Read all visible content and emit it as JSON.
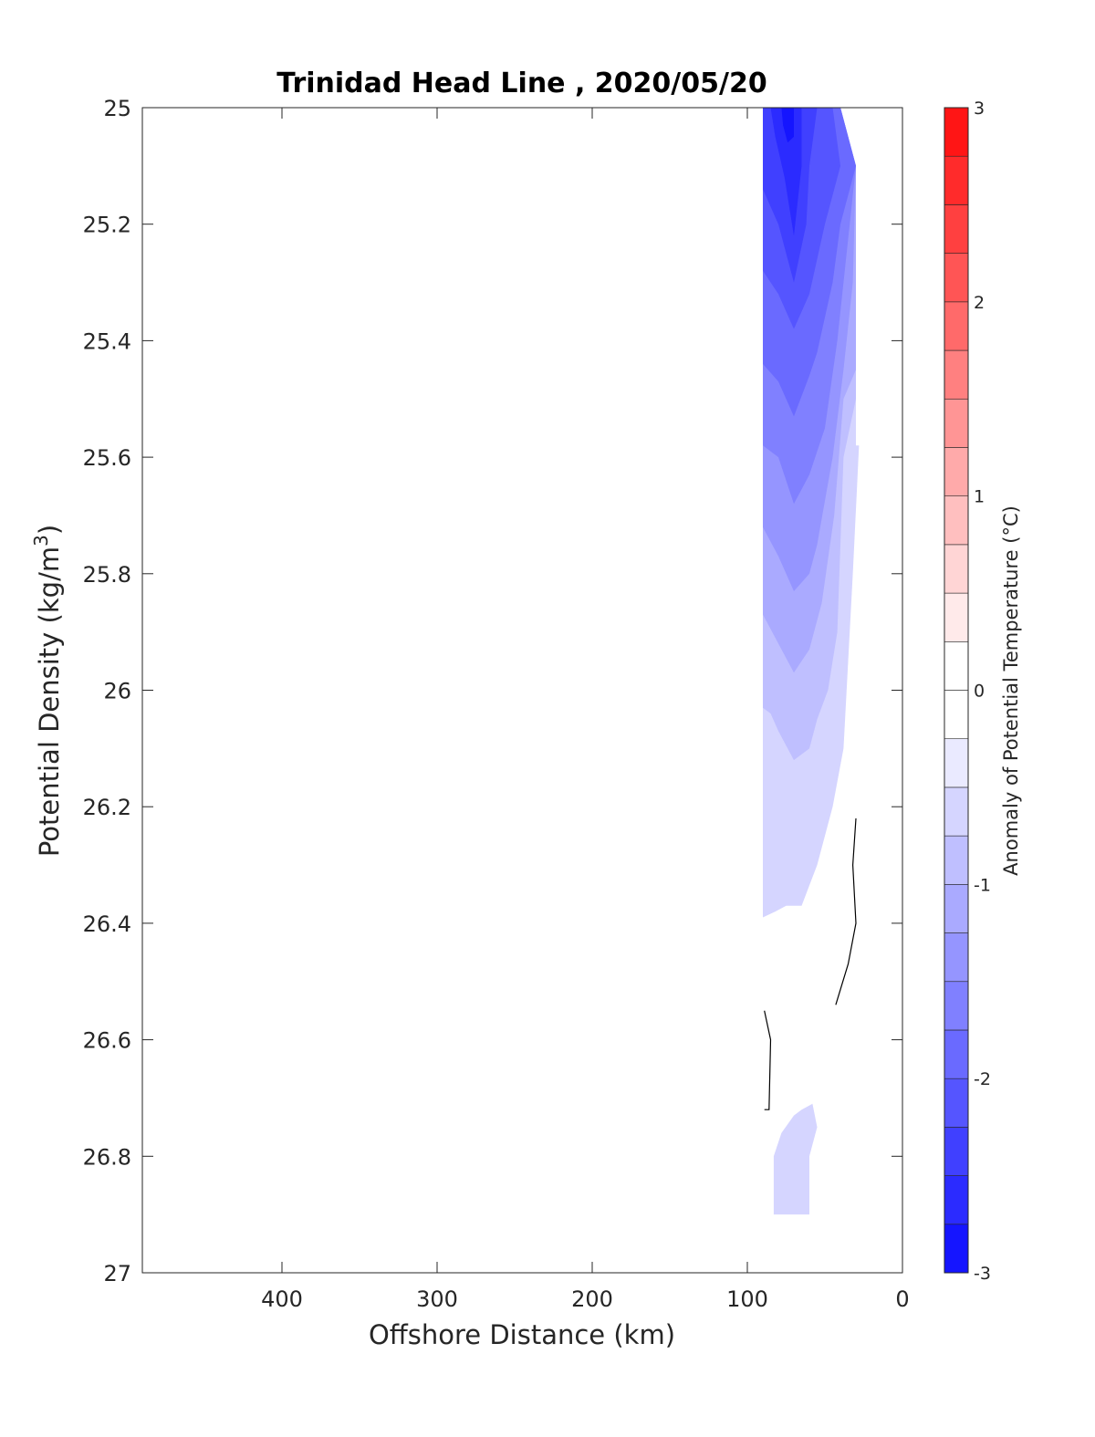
{
  "chart_data": {
    "type": "contour",
    "title": "Trinidad Head Line , 2020/05/20",
    "xlabel": "Offshore Distance (km)",
    "ylabel": "Potential Density (kg/m",
    "ylabel_sup": "3",
    "ylabel_close": ")",
    "xlim": [
      490,
      0
    ],
    "ylim": [
      25,
      27
    ],
    "x_reversed": true,
    "y_reversed": true,
    "x_ticks": [
      400,
      300,
      200,
      100,
      0
    ],
    "y_ticks": [
      "25",
      "25.2",
      "25.4",
      "25.6",
      "25.8",
      "26",
      "26.2",
      "26.4",
      "26.6",
      "26.8",
      "27"
    ],
    "colorbar": {
      "label": "Anomaly of Potential Temperature (°C)",
      "range": [
        -3,
        3
      ],
      "ticks": [
        "-3",
        "-2",
        "-1",
        "0",
        "1",
        "2",
        "3"
      ],
      "levels": 24,
      "step": 0.25,
      "negative_color": "#0000ff",
      "positive_color": "#ff0000",
      "neutral_color": "#ffffff"
    },
    "filled_regions": [
      {
        "level": -0.5,
        "points": [
          [
            90,
            25
          ],
          [
            40,
            25
          ],
          [
            30,
            25.1
          ],
          [
            30,
            25.58
          ],
          [
            28,
            25.58
          ],
          [
            32,
            25.8
          ],
          [
            38,
            26.1
          ],
          [
            45,
            26.2
          ],
          [
            55,
            26.3
          ],
          [
            65,
            26.37
          ],
          [
            75,
            26.37
          ],
          [
            82,
            26.38
          ],
          [
            90,
            26.39
          ]
        ]
      },
      {
        "level": -0.75,
        "points": [
          [
            90,
            25
          ],
          [
            40,
            25
          ],
          [
            30,
            25.1
          ],
          [
            30,
            25.5
          ],
          [
            38,
            25.6
          ],
          [
            42,
            25.9
          ],
          [
            48,
            26.0
          ],
          [
            55,
            26.05
          ],
          [
            60,
            26.1
          ],
          [
            70,
            26.12
          ],
          [
            80,
            26.07
          ],
          [
            85,
            26.04
          ],
          [
            90,
            26.03
          ]
        ]
      },
      {
        "level": -1.0,
        "points": [
          [
            90,
            25
          ],
          [
            40,
            25
          ],
          [
            30,
            25.1
          ],
          [
            30,
            25.45
          ],
          [
            38,
            25.5
          ],
          [
            44,
            25.7
          ],
          [
            52,
            25.85
          ],
          [
            60,
            25.93
          ],
          [
            70,
            25.97
          ],
          [
            80,
            25.92
          ],
          [
            90,
            25.87
          ]
        ]
      },
      {
        "level": -1.25,
        "points": [
          [
            90,
            25
          ],
          [
            40,
            25
          ],
          [
            30,
            25.1
          ],
          [
            32,
            25.3
          ],
          [
            38,
            25.45
          ],
          [
            45,
            25.6
          ],
          [
            55,
            25.75
          ],
          [
            60,
            25.8
          ],
          [
            70,
            25.83
          ],
          [
            80,
            25.77
          ],
          [
            90,
            25.72
          ]
        ]
      },
      {
        "level": -1.5,
        "points": [
          [
            90,
            25
          ],
          [
            40,
            25
          ],
          [
            30,
            25.1
          ],
          [
            36,
            25.25
          ],
          [
            42,
            25.4
          ],
          [
            50,
            25.55
          ],
          [
            60,
            25.63
          ],
          [
            70,
            25.68
          ],
          [
            80,
            25.6
          ],
          [
            90,
            25.58
          ]
        ]
      },
      {
        "level": -1.75,
        "points": [
          [
            90,
            25
          ],
          [
            40,
            25
          ],
          [
            30,
            25.1
          ],
          [
            40,
            25.2
          ],
          [
            45,
            25.3
          ],
          [
            55,
            25.42
          ],
          [
            60,
            25.46
          ],
          [
            70,
            25.53
          ],
          [
            80,
            25.47
          ],
          [
            90,
            25.44
          ]
        ]
      },
      {
        "level": -2.0,
        "points": [
          [
            90,
            25
          ],
          [
            45,
            25
          ],
          [
            40,
            25.1
          ],
          [
            50,
            25.2
          ],
          [
            60,
            25.32
          ],
          [
            70,
            25.38
          ],
          [
            80,
            25.32
          ],
          [
            90,
            25.28
          ]
        ]
      },
      {
        "level": -2.25,
        "points": [
          [
            90,
            25
          ],
          [
            55,
            25
          ],
          [
            60,
            25.1
          ],
          [
            62,
            25.2
          ],
          [
            70,
            25.3
          ],
          [
            80,
            25.2
          ],
          [
            90,
            25.14
          ]
        ]
      },
      {
        "level": -2.5,
        "points": [
          [
            85,
            25
          ],
          [
            65,
            25
          ],
          [
            65,
            25.1
          ],
          [
            70,
            25.22
          ],
          [
            76,
            25.12
          ],
          [
            82,
            25.05
          ]
        ]
      },
      {
        "level": -2.75,
        "points": [
          [
            78,
            25
          ],
          [
            70,
            25
          ],
          [
            70,
            25.05
          ],
          [
            74,
            25.06
          ],
          [
            77,
            25.03
          ]
        ]
      },
      {
        "level": -0.5,
        "points": [
          [
            83,
            26.9
          ],
          [
            60,
            26.9
          ],
          [
            60,
            26.8
          ],
          [
            55,
            26.75
          ],
          [
            58,
            26.71
          ],
          [
            65,
            26.72
          ],
          [
            70,
            26.73
          ],
          [
            78,
            26.76
          ],
          [
            83,
            26.8
          ]
        ]
      }
    ],
    "contour_lines": [
      {
        "level": 0,
        "points": [
          [
            30,
            26.22
          ],
          [
            32,
            26.3
          ],
          [
            30,
            26.4
          ],
          [
            35,
            26.47
          ],
          [
            43,
            26.54
          ]
        ]
      },
      {
        "level": 0,
        "points": [
          [
            89,
            26.55
          ],
          [
            85,
            26.6
          ],
          [
            86,
            26.72
          ],
          [
            89,
            26.72
          ]
        ]
      }
    ]
  }
}
